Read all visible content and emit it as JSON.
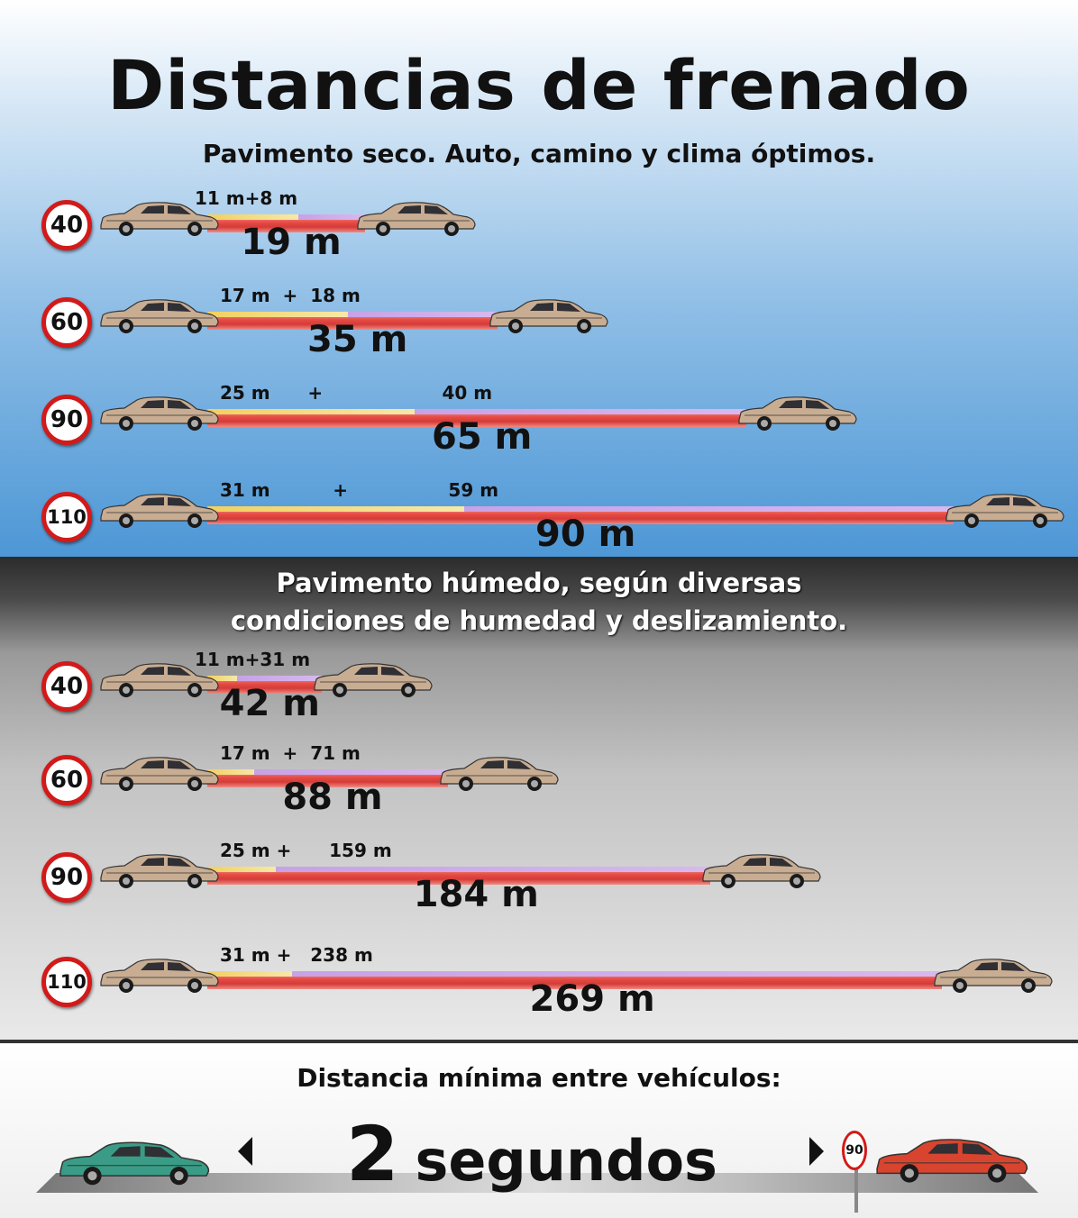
{
  "header": {
    "title": "Distancias de frenado",
    "dry_subtitle": "Pavimento seco. Auto, camino y clima óptimos."
  },
  "wet": {
    "subtitle_line1": "Pavimento húmedo, según diversas",
    "subtitle_line2": "condiciones de humedad y deslizamiento."
  },
  "dry_rows": [
    {
      "speed": "40",
      "parts": "11 m+8 m",
      "total": "19 m",
      "reaction_m": 11,
      "braking_m": 8,
      "total_m": 19
    },
    {
      "speed": "60",
      "parts": "17 m  +  18 m",
      "total": "35 m",
      "reaction_m": 17,
      "braking_m": 18,
      "total_m": 35
    },
    {
      "speed": "90",
      "parts": "25 m      +                   40 m",
      "total": "65 m",
      "reaction_m": 25,
      "braking_m": 40,
      "total_m": 65
    },
    {
      "speed": "110",
      "parts": "31 m          +                59 m",
      "total": "90 m",
      "reaction_m": 31,
      "braking_m": 59,
      "total_m": 90
    }
  ],
  "wet_rows": [
    {
      "speed": "40",
      "parts": "11 m+31 m",
      "total": "42 m",
      "reaction_m": 11,
      "braking_m": 31,
      "total_m": 42
    },
    {
      "speed": "60",
      "parts": "17 m  +  71 m",
      "total": "88 m",
      "reaction_m": 17,
      "braking_m": 71,
      "total_m": 88
    },
    {
      "speed": "90",
      "parts": "25 m +      159 m",
      "total": "184 m",
      "reaction_m": 25,
      "braking_m": 159,
      "total_m": 184
    },
    {
      "speed": "110",
      "parts": "31 m +   238 m",
      "total": "269 m",
      "reaction_m": 31,
      "braking_m": 238,
      "total_m": 269
    }
  ],
  "footer": {
    "label": "Distancia mínima entre vehículos:",
    "number": "2",
    "unit": "segundos",
    "sign": "90"
  },
  "colors": {
    "sign_border": "#d21a1a",
    "bar": "#e64a43",
    "reaction": "#f2d060",
    "braking": "#c7a2e6",
    "car_beige": "#c8ad93",
    "car_green": "#3a9c86",
    "car_red": "#d9442f"
  }
}
